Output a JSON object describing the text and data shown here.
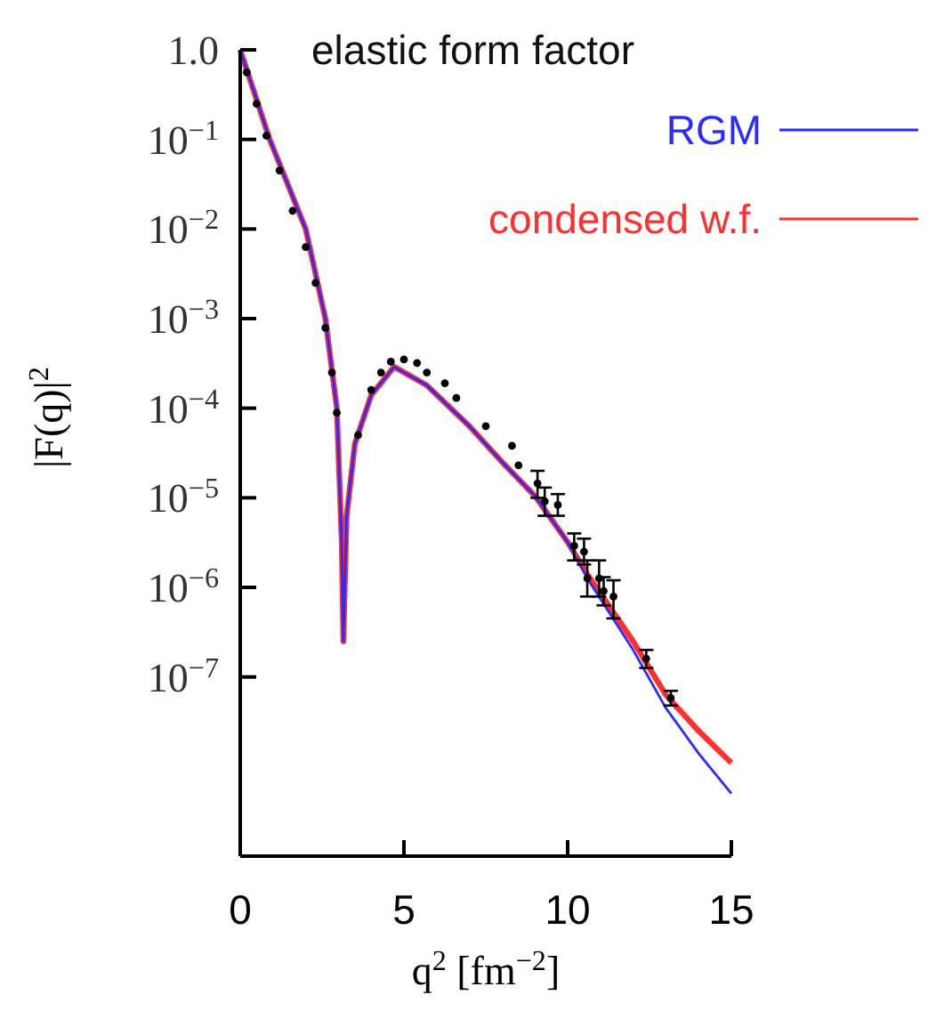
{
  "chart_data": {
    "type": "line",
    "title": "elastic form factor",
    "xlabel": "q$^{2}$ [fm$^{−2}$]",
    "ylabel": "|F(q)|$^{2}$",
    "log": "y",
    "xlim": [
      0,
      15
    ],
    "xticks": [
      0,
      5,
      10,
      15
    ],
    "ylim": [
      1e-09,
      1
    ],
    "yticks": [
      {
        "value": 1,
        "label": "1.0"
      },
      {
        "value": 0.1,
        "label": "10$^{−1}$"
      },
      {
        "value": 0.01,
        "label": "10$^{−2}$"
      },
      {
        "value": 0.001,
        "label": "10$^{−3}$"
      },
      {
        "value": 0.0001,
        "label": "10$^{−4}$"
      },
      {
        "value": 1e-05,
        "label": "10$^{−5}$"
      },
      {
        "value": 1e-06,
        "label": "10$^{−6}$"
      },
      {
        "value": 1e-07,
        "label": "10$^{−7}$"
      }
    ],
    "legend": "top right",
    "grid": false,
    "series": [
      {
        "name": "RGM",
        "color": "#2b2bff",
        "marker": "none",
        "x": [
          0,
          0.9,
          2.0,
          2.6,
          2.95,
          3.1,
          3.15,
          3.25,
          3.5,
          4.0,
          4.7,
          5.7,
          7,
          8,
          9,
          10,
          10.6,
          12,
          13,
          14,
          15
        ],
        "values": [
          1,
          0.1,
          0.01,
          0.001,
          0.0001,
          3.2e-06,
          2.5e-07,
          6.3e-06,
          4e-05,
          0.00014,
          0.00029,
          0.00018,
          6.3e-05,
          2.5e-05,
          1.05e-05,
          3.2e-06,
          1.26e-06,
          2e-07,
          4.5e-08,
          1.4e-08,
          5e-09
        ]
      },
      {
        "name": "condensed w.f.",
        "color": "#ff3030",
        "marker": "none",
        "x": [
          0,
          0.9,
          2.0,
          2.6,
          2.95,
          3.1,
          3.15,
          3.25,
          3.5,
          4.0,
          4.7,
          5.7,
          7,
          8,
          9,
          10,
          10.6,
          12,
          13,
          14,
          15
        ],
        "values": [
          1,
          0.1,
          0.01,
          0.001,
          0.0001,
          3.2e-06,
          2.5e-07,
          6.3e-06,
          4e-05,
          0.00014,
          0.00029,
          0.00018,
          6.3e-05,
          2.5e-05,
          1.05e-05,
          3.2e-06,
          1.4e-06,
          2.5e-07,
          6.3e-08,
          2.5e-08,
          1.1e-08
        ]
      },
      {
        "color": "#000000",
        "type": "scatter",
        "marker": "circle",
        "x": [
          0.2,
          0.5,
          0.8,
          1.2,
          1.6,
          2.0,
          2.3,
          2.6,
          2.8,
          2.95,
          3.6,
          4.0,
          4.3,
          4.6,
          5.0,
          5.4,
          5.7,
          6.25,
          6.6,
          7.5,
          8.3,
          8.5
        ],
        "values": [
          0.56,
          0.25,
          0.11,
          0.045,
          0.016,
          0.0063,
          0.0025,
          0.00079,
          0.00025,
          8.9e-05,
          5e-05,
          0.00016,
          0.00025,
          0.00033,
          0.00035,
          0.00032,
          0.00025,
          0.00019,
          0.00013,
          6.3e-05,
          3.8e-05,
          2.3e-05
        ]
      },
      {
        "color": "#000000",
        "type": "scatter",
        "marker": "circle",
        "x": [
          9.08,
          9.3,
          9.7,
          10.2,
          10.5,
          10.6,
          10.96,
          11.1,
          11.4,
          12.4,
          13.15
        ],
        "values": [
          1.45e-05,
          9.1e-06,
          8.3e-06,
          2.9e-06,
          2.5e-06,
          1.26e-06,
          1.26e-06,
          9.1e-07,
          7.9e-07,
          1.6e-07,
          5.8e-08
        ],
        "errors": [
          [
            1e-05,
            2e-05
          ],
          [
            6.3e-06,
            1.3e-05
          ],
          [
            6.3e-06,
            1.1e-05
          ],
          [
            2e-06,
            4e-06
          ],
          [
            1.8e-06,
            3.5e-06
          ],
          [
            7.9e-07,
            2e-06
          ],
          [
            7.9e-07,
            2e-06
          ],
          [
            6.3e-07,
            1.3e-06
          ],
          [
            4.5e-07,
            1.2e-06
          ],
          [
            1.26e-07,
            2e-07
          ],
          [
            4.8e-08,
            7e-08
          ]
        ]
      }
    ]
  }
}
